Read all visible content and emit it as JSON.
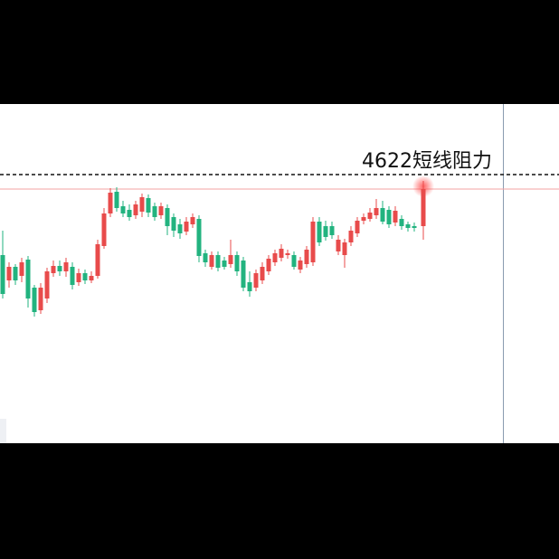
{
  "chart_data": {
    "type": "candlestick",
    "ylim": [
      4325,
      4700
    ],
    "up_color": "#e84b4b",
    "down_color": "#22b37f",
    "open": [
      4533,
      4505,
      4520,
      4510,
      4528,
      4497,
      4472,
      4485,
      4513,
      4521,
      4515,
      4520,
      4503,
      4513,
      4505,
      4510,
      4543,
      4579,
      4603,
      4587,
      4583,
      4577,
      4581,
      4596,
      4587,
      4577,
      4585,
      4575,
      4567,
      4559,
      4567,
      4573,
      4535,
      4520,
      4533,
      4527,
      4523,
      4533,
      4527,
      4503,
      4497,
      4505,
      4515,
      4525,
      4530,
      4533,
      4533,
      4517,
      4523,
      4525,
      4570,
      4565,
      4565,
      4537,
      4533,
      4547,
      4557,
      4571,
      4573,
      4577,
      4585,
      4583,
      4569,
      4573,
      4567,
      4565,
      4565
    ],
    "high": [
      4560,
      4525,
      4523,
      4530,
      4532,
      4500,
      4502,
      4519,
      4527,
      4527,
      4530,
      4525,
      4518,
      4517,
      4515,
      4550,
      4585,
      4607,
      4608,
      4593,
      4589,
      4593,
      4601,
      4600,
      4591,
      4591,
      4589,
      4579,
      4573,
      4575,
      4579,
      4577,
      4539,
      4537,
      4537,
      4531,
      4550,
      4537,
      4531,
      4515,
      4517,
      4525,
      4533,
      4539,
      4545,
      4539,
      4537,
      4531,
      4543,
      4575,
      4575,
      4571,
      4570,
      4555,
      4551,
      4565,
      4575,
      4579,
      4585,
      4595,
      4593,
      4587,
      4587,
      4577,
      4570,
      4569,
      4615
    ],
    "low": [
      4485,
      4497,
      4500,
      4503,
      4475,
      4465,
      4468,
      4480,
      4509,
      4510,
      4509,
      4495,
      4499,
      4501,
      4502,
      4507,
      4540,
      4575,
      4581,
      4575,
      4571,
      4573,
      4575,
      4575,
      4571,
      4573,
      4555,
      4553,
      4551,
      4555,
      4563,
      4525,
      4520,
      4517,
      4515,
      4517,
      4519,
      4510,
      4493,
      4487,
      4493,
      4501,
      4511,
      4521,
      4526,
      4529,
      4517,
      4513,
      4519,
      4521,
      4543,
      4549,
      4551,
      4533,
      4519,
      4543,
      4553,
      4567,
      4570,
      4573,
      4567,
      4563,
      4565,
      4561,
      4559,
      4559,
      4550
    ],
    "close": [
      4490,
      4520,
      4505,
      4525,
      4485,
      4470,
      4497,
      4515,
      4521,
      4515,
      4525,
      4500,
      4513,
      4505,
      4510,
      4545,
      4579,
      4602,
      4585,
      4579,
      4575,
      4589,
      4597,
      4580,
      4575,
      4587,
      4565,
      4560,
      4557,
      4570,
      4575,
      4532,
      4525,
      4533,
      4519,
      4520,
      4533,
      4515,
      4497,
      4493,
      4513,
      4520,
      4529,
      4535,
      4540,
      4535,
      4520,
      4527,
      4539,
      4570,
      4547,
      4553,
      4555,
      4550,
      4547,
      4560,
      4571,
      4575,
      4580,
      4585,
      4570,
      4567,
      4582,
      4565,
      4563,
      4563,
      4606
    ],
    "resistance_line": {
      "value": 4622,
      "label": "4622短线阻力"
    },
    "price_line": 4606
  }
}
